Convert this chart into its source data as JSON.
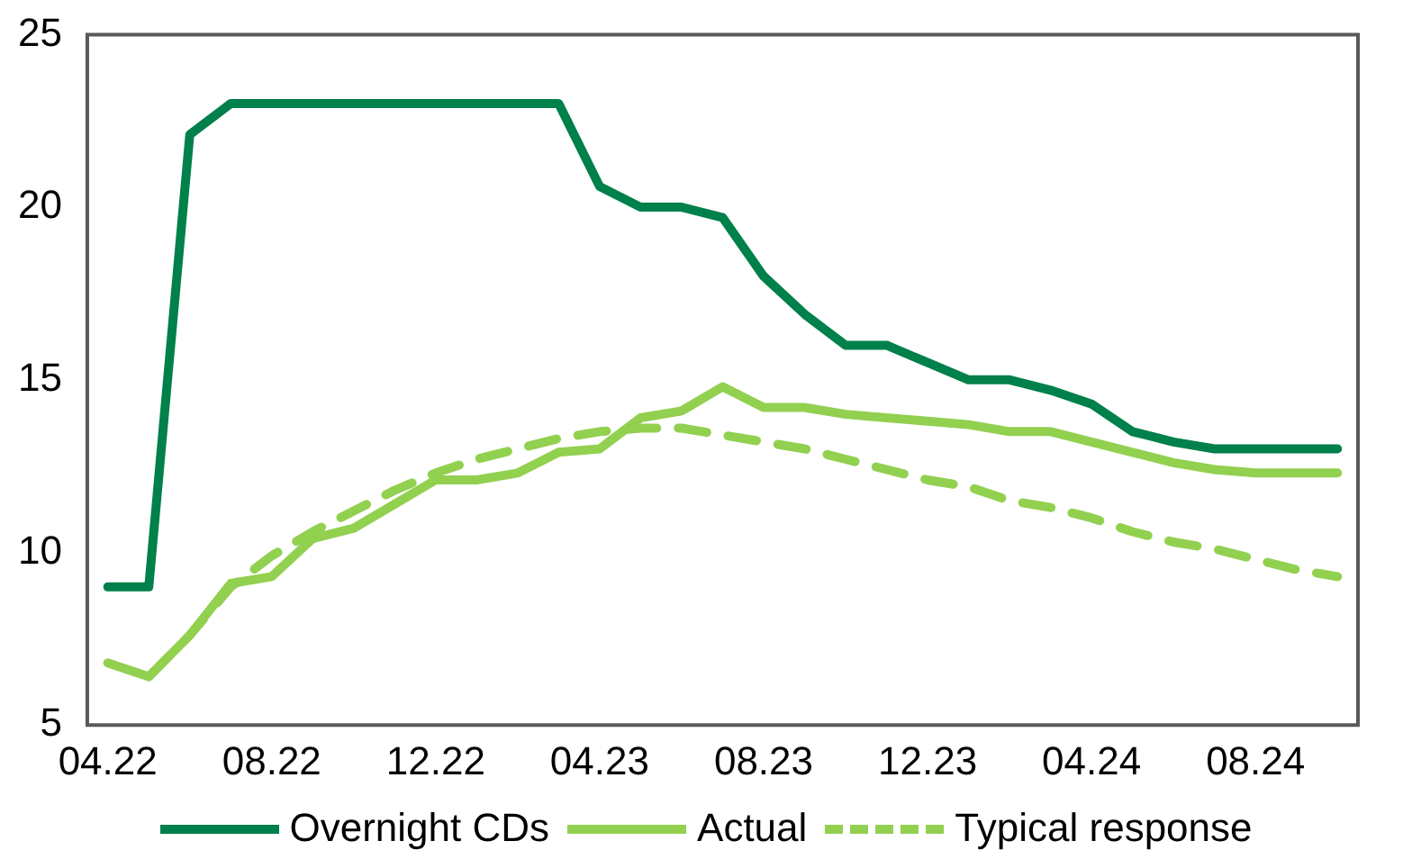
{
  "chart_data": {
    "type": "line",
    "categories": [
      "04.22",
      null,
      null,
      null,
      "08.22",
      null,
      null,
      null,
      "12.22",
      null,
      null,
      null,
      "04.23",
      null,
      null,
      null,
      "08.23",
      null,
      null,
      null,
      "12.23",
      null,
      null,
      null,
      "04.24",
      null,
      null,
      null,
      "08.24",
      null,
      null
    ],
    "series": [
      {
        "name": "Overnight CDs",
        "color": "#00804a",
        "line_style": "solid",
        "values": [
          9,
          9,
          22.1,
          23,
          23,
          23,
          23,
          23,
          23,
          23,
          23,
          23,
          20.6,
          20,
          20,
          19.7,
          18,
          16.9,
          16,
          16,
          15.5,
          15,
          15,
          14.7,
          14.3,
          13.5,
          13.2,
          13,
          13,
          13,
          13
        ]
      },
      {
        "name": "Actual",
        "color": "#92d050",
        "line_style": "solid",
        "values": [
          6.8,
          6.4,
          7.6,
          9.1,
          9.3,
          10.4,
          10.7,
          11.4,
          12.1,
          12.1,
          12.3,
          12.9,
          13,
          13.9,
          14.1,
          14.8,
          14.2,
          14.2,
          14,
          13.9,
          13.8,
          13.7,
          13.5,
          13.5,
          13.2,
          12.9,
          12.6,
          12.4,
          12.3,
          12.3,
          12.3
        ]
      },
      {
        "name": "Typical response",
        "color": "#92d050",
        "line_style": "dashed",
        "values": [
          null,
          6.4,
          7.6,
          9,
          9.9,
          10.6,
          11.2,
          11.8,
          12.3,
          12.7,
          13,
          13.3,
          13.5,
          13.6,
          13.6,
          13.4,
          13.2,
          13,
          12.7,
          12.4,
          12.1,
          11.9,
          11.5,
          11.3,
          11,
          10.6,
          10.3,
          10.1,
          9.8,
          9.5,
          9.3
        ]
      }
    ],
    "ylim": [
      5,
      25
    ],
    "yticks": [
      5,
      10,
      15,
      20,
      25
    ],
    "grid": false,
    "legend": "bottom",
    "marker": "none"
  }
}
